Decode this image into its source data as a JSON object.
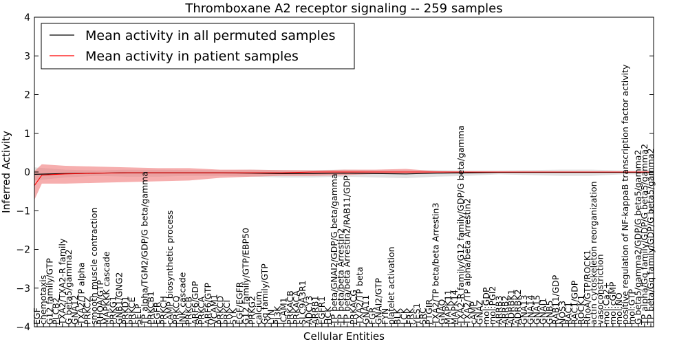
{
  "chart_data": {
    "type": "line",
    "title": "Thromboxane A2 receptor signaling -- 259 samples",
    "xlabel": "Cellular Entities",
    "ylabel": "Inferred Activity",
    "ylim": [
      -4,
      4
    ],
    "yticks": [
      "4",
      "3",
      "2",
      "1",
      "0",
      "−1",
      "−2",
      "−3",
      "−4"
    ],
    "grid": false,
    "legend": {
      "placement": "top-left",
      "entries": [
        {
          "label": "Mean activity in all permuted samples",
          "color": "#000000"
        },
        {
          "label": "Mean activity in patient samples",
          "color": "#ff0000"
        }
      ]
    },
    "categories": [
      "EGF",
      "chemotaxis",
      "G12 family/GTP",
      "PLCB2",
      "TXA2/TXA2-R family",
      "G beta5/gamma2",
      "GNA12",
      "TXA2/TP alpha",
      "PRKCZ",
      "smooth muscle contraction",
      "RHOA/GTP",
      "MAPKKK cascade",
      "PRKG1",
      "GNB1/GNG2",
      "PRKD1",
      "PRKCE",
      "SELP",
      "TP alpha/TGM2/GDP/G beta/gamma",
      "PRKCB1",
      "EGFR",
      "PRKCH",
      "cAMP biosynthetic process",
      "PRKCQ",
      "JNK cascade",
      "PRKCB",
      "ARF6/GDP",
      "PRKCA",
      "ARF6/GTP",
      "VCAM1",
      "PRKCD",
      "PRKCI",
      "SYK",
      "EGF/EGFR",
      "G12 family/GTP/EBP50",
      "PRKG2",
      "calcium",
      "Gq family/GTP",
      "LYN",
      "PI3K",
      "ICAM1",
      "PRKACB",
      "PRKACA",
      "SLC9A3R1",
      "ADCY3",
      "ARRB1",
      "EGFR1",
      "HCK",
      "TP beta/GNAI2/GDP/G beta/gamma",
      "TP beta/beta Arrestin2",
      "TP beta/beta Arrestin2/RAB11/GDP",
      "PRKACG",
      "TXA2/TP beta",
      "GNA11",
      "FGR",
      "GNAI2/GTP",
      "FYN",
      "platelet activation",
      "BLK",
      "LCK",
      "FRK",
      "YES1",
      "SRC",
      "PTGIR",
      "TXA2/TP beta/beta Arrestin3",
      "GNAQ",
      "MAPK11",
      "MAPK14",
      "TXA2-R family/G12 family/GDP/G beta/gamma",
      "TXA2/TP alpha/beta Arrestin2",
      "cAMP",
      "GNAZ",
      "mol:GDP",
      "mol:PGI2",
      "ARRB3",
      "ARRB2",
      "ADRBK1",
      "ADRBK2",
      "GNA13",
      "GNA14",
      "GNA15",
      "GNAI1",
      "GNB5",
      "RAB11/GDP",
      "NOS3",
      "RAC1",
      "RAC1/GDP",
      "ROCK1",
      "RhoA/GTP/ROCK1",
      "actin cytoskeleton reorganization",
      "vasoconstriction",
      "mol:Ca2+",
      "mol:cGMP",
      "mol:NO",
      "positive regulation of NF-kappaB transcription factor activity",
      "mol:GTP",
      "G beta5/gamma2/GDP/G beta5/gamma2",
      "TP alpha/Gq family/GDP/G beta5/gamma2",
      "TP beta/Gq family/GDP/G beta5/gamma2"
    ],
    "series": [
      {
        "name": "Mean activity in all permuted samples",
        "color": "#000000",
        "x": [
          0,
          0.05,
          0.1,
          0.15,
          0.2,
          0.25,
          0.3,
          0.35,
          0.4,
          0.45,
          0.5,
          0.55,
          0.6,
          0.65,
          0.7,
          0.75,
          0.8,
          0.85,
          0.9,
          0.95,
          1.0
        ],
        "values": [
          -0.06,
          -0.04,
          -0.03,
          -0.02,
          -0.02,
          -0.02,
          -0.02,
          -0.03,
          -0.04,
          -0.04,
          -0.03,
          -0.04,
          -0.05,
          -0.03,
          -0.02,
          -0.01,
          -0.01,
          -0.01,
          -0.01,
          -0.01,
          -0.01
        ],
        "band_low": [
          -0.22,
          -0.14,
          -0.1,
          -0.12,
          -0.12,
          -0.1,
          -0.1,
          -0.12,
          -0.14,
          -0.14,
          -0.12,
          -0.14,
          -0.16,
          -0.12,
          -0.1,
          -0.06,
          -0.08,
          -0.1,
          -0.1,
          -0.06,
          -0.06
        ],
        "band_high": [
          0.12,
          0.06,
          0.04,
          0.06,
          0.06,
          0.05,
          0.05,
          0.06,
          0.05,
          0.05,
          0.06,
          0.05,
          0.05,
          0.05,
          0.04,
          0.04,
          0.05,
          0.06,
          0.06,
          0.04,
          0.04
        ]
      },
      {
        "name": "Mean activity in patient samples",
        "color": "#ff0000",
        "x": [
          0,
          0.012,
          0.05,
          0.1,
          0.15,
          0.2,
          0.25,
          0.3,
          0.35,
          0.4,
          0.45,
          0.5,
          0.55,
          0.6,
          0.65,
          0.7,
          0.75,
          0.8,
          0.85,
          0.9,
          0.95,
          1.0
        ],
        "values": [
          -0.35,
          -0.08,
          -0.05,
          -0.03,
          -0.02,
          -0.02,
          -0.02,
          -0.02,
          -0.02,
          -0.02,
          0.0,
          0.0,
          0.0,
          0.0,
          0.0,
          0.0,
          0.0,
          0.0,
          0.0,
          0.0,
          0.0,
          0.0
        ],
        "band_low": [
          -0.72,
          -0.3,
          -0.3,
          -0.28,
          -0.26,
          -0.24,
          -0.22,
          -0.15,
          -0.12,
          -0.1,
          -0.1,
          -0.08,
          -0.05,
          -0.04,
          -0.02,
          -0.01,
          -0.01,
          -0.01,
          -0.01,
          -0.01,
          -0.01,
          -0.01
        ],
        "band_high": [
          0.02,
          0.2,
          0.16,
          0.14,
          0.12,
          0.1,
          0.1,
          0.06,
          0.06,
          0.05,
          0.04,
          0.06,
          0.06,
          0.08,
          0.02,
          0.01,
          0.01,
          0.01,
          0.01,
          0.01,
          0.01,
          0.01
        ]
      }
    ]
  },
  "colors": {
    "background": "#ffffff",
    "axis": "#000000",
    "permuted_band": "#c8c8c8",
    "patient_band": "#f07878"
  }
}
